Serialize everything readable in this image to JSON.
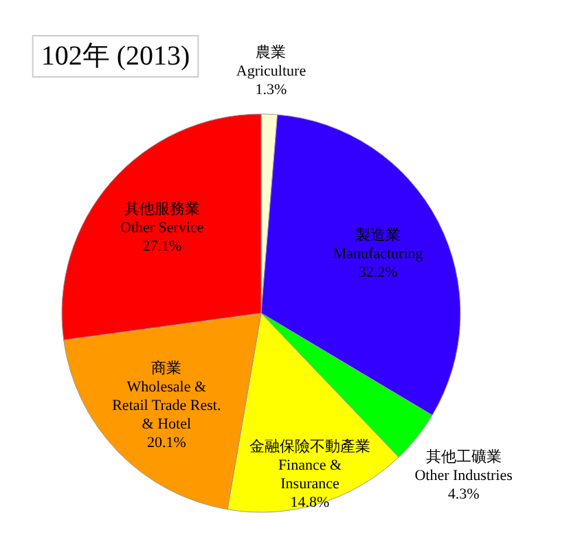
{
  "chart_data": {
    "type": "pie",
    "title": "102年 (2013)",
    "categories": [
      "農業\nAgriculture",
      "製造業\nManufacturing",
      "其他工礦業\nOther Industries",
      "金融保險不動產業\nFinance &\nInsurance",
      "商業\nWholesale &\nRetail Trade Rest.\n& Hotel",
      "其他服務業\nOther Service"
    ],
    "values": [
      1.3,
      32.2,
      4.3,
      14.8,
      20.1,
      27.1
    ],
    "colors": [
      "#fffbd0",
      "#3300ff",
      "#00ff00",
      "#ffff00",
      "#ff9900",
      "#ff0000"
    ],
    "value_labels": [
      "1.3%",
      "32.2%",
      "4.3%",
      "14.8%",
      "20.1%",
      "27.1%"
    ]
  }
}
